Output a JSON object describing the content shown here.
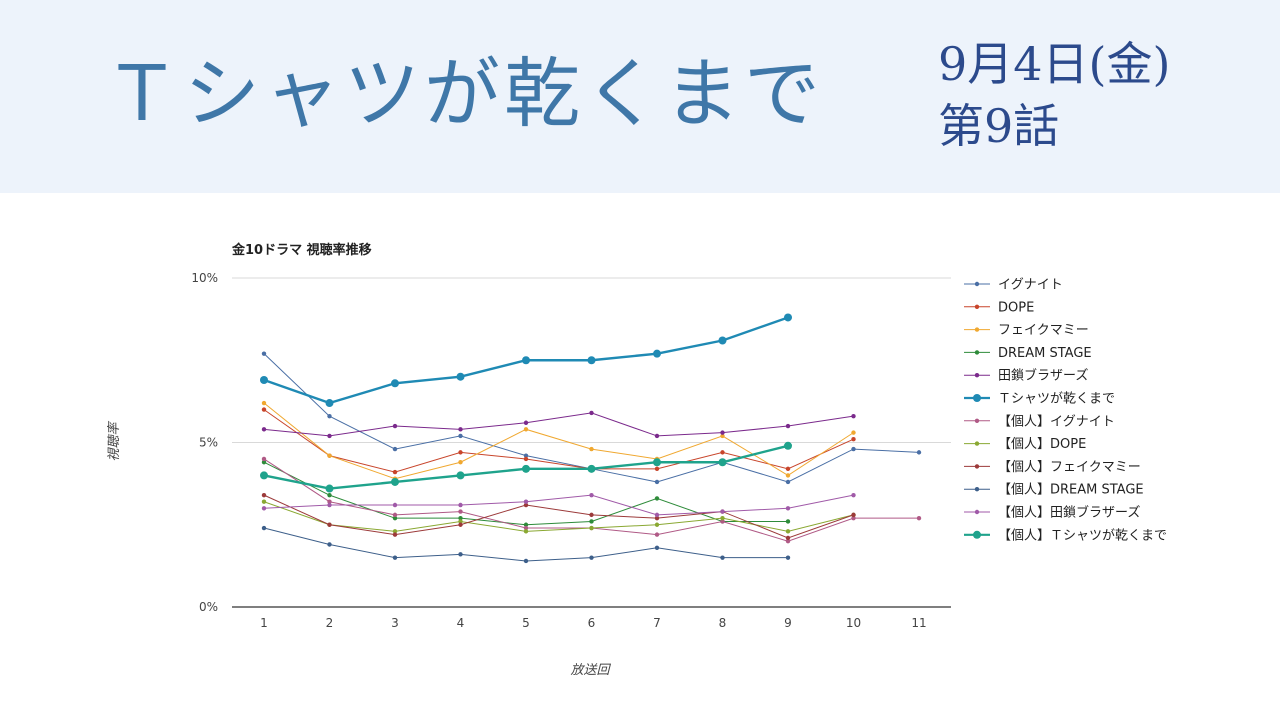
{
  "header": {
    "title": "Ｔシャツが乾くまで",
    "date": "9月4日(金)",
    "episode": "第9話"
  },
  "chart_data": {
    "type": "line",
    "title": "金10ドラマ 視聴率推移",
    "xlabel": "放送回",
    "ylabel": "視聴率",
    "x": [
      1,
      2,
      3,
      4,
      5,
      6,
      7,
      8,
      9,
      10,
      11
    ],
    "ylim": [
      0,
      10
    ],
    "y_ticks": [
      "0%",
      "5%",
      "10%"
    ],
    "grid": true,
    "legend": "right",
    "series": [
      {
        "name": "イグナイト",
        "color": "#4a6fa5",
        "values": [
          7.7,
          5.8,
          4.8,
          5.2,
          4.6,
          4.2,
          3.8,
          4.4,
          3.8,
          4.8,
          4.7
        ]
      },
      {
        "name": "DOPE",
        "color": "#c8452b",
        "values": [
          6.0,
          4.6,
          4.1,
          4.7,
          4.5,
          4.2,
          4.2,
          4.7,
          4.2,
          5.1,
          null
        ]
      },
      {
        "name": "フェイクマミー",
        "color": "#f0a830",
        "values": [
          6.2,
          4.6,
          3.9,
          4.4,
          5.4,
          4.8,
          4.5,
          5.2,
          4.0,
          5.3,
          null
        ]
      },
      {
        "name": "DREAM STAGE",
        "color": "#2e8b3a",
        "values": [
          4.4,
          3.4,
          2.7,
          2.7,
          2.5,
          2.6,
          3.3,
          2.6,
          2.6,
          null,
          null
        ]
      },
      {
        "name": "田鎖ブラザーズ",
        "color": "#7b2a8c",
        "values": [
          5.4,
          5.2,
          5.5,
          5.4,
          5.6,
          5.9,
          5.2,
          5.3,
          5.5,
          5.8,
          null
        ]
      },
      {
        "name": "Ｔシャツが乾くまで",
        "color": "#1f8ab4",
        "values": [
          6.9,
          6.2,
          6.8,
          7.0,
          7.5,
          7.5,
          7.7,
          8.1,
          8.8,
          null,
          null
        ]
      },
      {
        "name": "【個人】イグナイト",
        "color": "#b05a86",
        "values": [
          4.5,
          3.2,
          2.8,
          2.9,
          2.4,
          2.4,
          2.2,
          2.6,
          2.0,
          2.7,
          2.7
        ]
      },
      {
        "name": "【個人】DOPE",
        "color": "#8aa832",
        "values": [
          3.2,
          2.5,
          2.3,
          2.6,
          2.3,
          2.4,
          2.5,
          2.7,
          2.3,
          2.8,
          null
        ]
      },
      {
        "name": "【個人】フェイクマミー",
        "color": "#9c3a3a",
        "values": [
          3.4,
          2.5,
          2.2,
          2.5,
          3.1,
          2.8,
          2.7,
          2.9,
          2.1,
          2.8,
          null
        ]
      },
      {
        "name": "【個人】DREAM STAGE",
        "color": "#3d5f8a",
        "values": [
          2.4,
          1.9,
          1.5,
          1.6,
          1.4,
          1.5,
          1.8,
          1.5,
          1.5,
          null,
          null
        ]
      },
      {
        "name": "【個人】田鎖ブラザーズ",
        "color": "#a05aa8",
        "values": [
          3.0,
          3.1,
          3.1,
          3.1,
          3.2,
          3.4,
          2.8,
          2.9,
          3.0,
          3.4,
          null
        ]
      },
      {
        "name": "【個人】Ｔシャツが乾くまで",
        "color": "#1fa38c",
        "values": [
          4.0,
          3.6,
          3.8,
          4.0,
          4.2,
          4.2,
          4.4,
          4.4,
          4.9,
          null,
          null
        ]
      }
    ]
  }
}
